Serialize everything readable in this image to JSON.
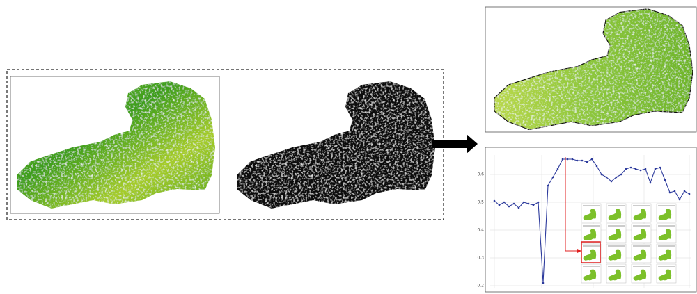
{
  "chart_data": {
    "type": "line",
    "color": "#2c3a9c",
    "categories": [
      null,
      null,
      null,
      null,
      null,
      null,
      null,
      null,
      null,
      null,
      null,
      null,
      null,
      null,
      null,
      null,
      null,
      null,
      null,
      null,
      null,
      null,
      null,
      null,
      null,
      null,
      null,
      null,
      null,
      null,
      null,
      null,
      null,
      null,
      null,
      null,
      null,
      null,
      null,
      null,
      null
    ],
    "values": [
      0.505,
      0.49,
      0.5,
      0.485,
      0.495,
      0.48,
      0.5,
      0.495,
      0.49,
      0.5,
      0.21,
      0.56,
      0.59,
      0.62,
      0.655,
      0.655,
      0.655,
      0.65,
      0.65,
      0.645,
      0.655,
      0.63,
      0.6,
      0.59,
      0.575,
      0.59,
      0.6,
      0.62,
      0.625,
      0.62,
      0.615,
      0.62,
      0.57,
      0.62,
      0.625,
      0.58,
      0.535,
      0.54,
      0.51,
      0.54,
      0.53
    ],
    "ylim": [
      0.19,
      0.67
    ],
    "yticks": [
      0.2,
      0.3,
      0.4,
      0.5,
      0.6
    ],
    "grid": true
  }
}
